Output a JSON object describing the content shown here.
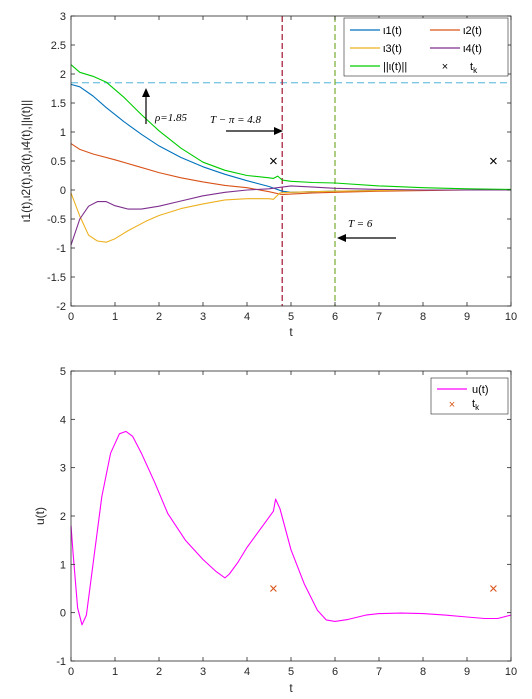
{
  "chart_data": [
    {
      "type": "line",
      "title": "",
      "xlabel": "t",
      "ylabel": "ι1(t),ι2(t),ι3(t),ι4(t),||ι(t)||",
      "xlim": [
        0,
        10
      ],
      "ylim": [
        -2,
        3
      ],
      "xticks": [
        "0",
        "1",
        "2",
        "3",
        "4",
        "5",
        "6",
        "7",
        "8",
        "9",
        "10"
      ],
      "yticks": [
        "-2",
        "-1.5",
        "-1",
        "-0.5",
        "0",
        "0.5",
        "1",
        "1.5",
        "2",
        "2.5",
        "3"
      ],
      "grid": false,
      "legend_position": "top-right",
      "series": [
        {
          "name": "ι1(t)",
          "color": "#0072BD",
          "points": [
            [
              0,
              1.82
            ],
            [
              0.2,
              1.78
            ],
            [
              0.5,
              1.62
            ],
            [
              0.8,
              1.42
            ],
            [
              1.2,
              1.18
            ],
            [
              1.6,
              0.96
            ],
            [
              2,
              0.76
            ],
            [
              2.5,
              0.56
            ],
            [
              3,
              0.4
            ],
            [
              3.5,
              0.27
            ],
            [
              4,
              0.16
            ],
            [
              4.5,
              0.06
            ],
            [
              4.8,
              -0.02
            ],
            [
              5,
              -0.04
            ],
            [
              5.5,
              -0.03
            ],
            [
              6,
              -0.02
            ],
            [
              7,
              -0.01
            ],
            [
              8,
              0
            ],
            [
              9,
              0
            ],
            [
              10,
              0
            ]
          ]
        },
        {
          "name": "ι2(t)",
          "color": "#D95319",
          "points": [
            [
              0,
              0.8
            ],
            [
              0.2,
              0.7
            ],
            [
              0.5,
              0.62
            ],
            [
              1,
              0.52
            ],
            [
              1.5,
              0.41
            ],
            [
              2,
              0.3
            ],
            [
              2.5,
              0.21
            ],
            [
              3,
              0.14
            ],
            [
              3.5,
              0.08
            ],
            [
              4,
              0.04
            ],
            [
              4.5,
              -0.03
            ],
            [
              4.8,
              -0.08
            ],
            [
              5,
              -0.07
            ],
            [
              5.5,
              -0.05
            ],
            [
              6,
              -0.04
            ],
            [
              7,
              -0.02
            ],
            [
              8,
              -0.01
            ],
            [
              9,
              0
            ],
            [
              10,
              0
            ]
          ]
        },
        {
          "name": "ι3(t)",
          "color": "#EDB120",
          "points": [
            [
              0,
              -0.05
            ],
            [
              0.2,
              -0.45
            ],
            [
              0.4,
              -0.78
            ],
            [
              0.6,
              -0.88
            ],
            [
              0.8,
              -0.9
            ],
            [
              1,
              -0.84
            ],
            [
              1.3,
              -0.7
            ],
            [
              1.7,
              -0.54
            ],
            [
              2,
              -0.44
            ],
            [
              2.5,
              -0.32
            ],
            [
              3,
              -0.24
            ],
            [
              3.5,
              -0.17
            ],
            [
              4,
              -0.15
            ],
            [
              4.5,
              -0.15
            ],
            [
              4.6,
              -0.16
            ],
            [
              4.75,
              -0.05
            ],
            [
              5,
              -0.04
            ],
            [
              5.5,
              -0.03
            ],
            [
              6,
              -0.02
            ],
            [
              7,
              -0.01
            ],
            [
              8,
              0
            ],
            [
              9,
              0
            ],
            [
              10,
              0
            ]
          ]
        },
        {
          "name": "ι4(t)",
          "color": "#7E2F8E",
          "points": [
            [
              0,
              -0.95
            ],
            [
              0.2,
              -0.5
            ],
            [
              0.4,
              -0.28
            ],
            [
              0.6,
              -0.2
            ],
            [
              0.8,
              -0.2
            ],
            [
              1,
              -0.27
            ],
            [
              1.3,
              -0.33
            ],
            [
              1.6,
              -0.33
            ],
            [
              2,
              -0.28
            ],
            [
              2.5,
              -0.19
            ],
            [
              3,
              -0.1
            ],
            [
              3.5,
              -0.04
            ],
            [
              4,
              0
            ],
            [
              4.5,
              0.02
            ],
            [
              4.8,
              0.05
            ],
            [
              5,
              0.07
            ],
            [
              5.5,
              0.05
            ],
            [
              6,
              0.03
            ],
            [
              7,
              0.01
            ],
            [
              8,
              0
            ],
            [
              9,
              0
            ],
            [
              10,
              0
            ]
          ]
        },
        {
          "name": "||ι(t)||",
          "color": "#00CC00",
          "points": [
            [
              0,
              2.16
            ],
            [
              0.2,
              2.03
            ],
            [
              0.5,
              1.96
            ],
            [
              0.8,
              1.86
            ],
            [
              1.2,
              1.6
            ],
            [
              1.6,
              1.3
            ],
            [
              2,
              1.02
            ],
            [
              2.5,
              0.72
            ],
            [
              3,
              0.48
            ],
            [
              3.5,
              0.34
            ],
            [
              4,
              0.25
            ],
            [
              4.5,
              0.21
            ],
            [
              4.6,
              0.2
            ],
            [
              4.7,
              0.24
            ],
            [
              4.8,
              0.17
            ],
            [
              5,
              0.15
            ],
            [
              5.5,
              0.13
            ],
            [
              6,
              0.12
            ],
            [
              7,
              0.07
            ],
            [
              8,
              0.04
            ],
            [
              9,
              0.02
            ],
            [
              10,
              0.01
            ]
          ]
        }
      ],
      "markers": {
        "name": "t_k",
        "label_main": "t",
        "label_sub": "k",
        "color": "#000000",
        "points": [
          [
            4.6,
            0.5
          ],
          [
            9.6,
            0.5
          ]
        ]
      },
      "reference_lines": [
        {
          "orientation": "horizontal",
          "value": 1.85,
          "color": "#7EC8E3"
        },
        {
          "orientation": "vertical",
          "value": 4.8,
          "color": "#A2142F"
        },
        {
          "orientation": "vertical",
          "value": 6,
          "color": "#77AC30"
        }
      ],
      "annotations": [
        {
          "text": "ρ=1.85"
        },
        {
          "text": "T − π = 4.8"
        },
        {
          "text": "T = 6"
        }
      ]
    },
    {
      "type": "line",
      "title": "",
      "xlabel": "t",
      "ylabel": "u(t)",
      "xlim": [
        0,
        10
      ],
      "ylim": [
        -1,
        5
      ],
      "xticks": [
        "0",
        "1",
        "2",
        "3",
        "4",
        "5",
        "6",
        "7",
        "8",
        "9",
        "10"
      ],
      "yticks": [
        "-1",
        "0",
        "1",
        "2",
        "3",
        "4",
        "5"
      ],
      "grid": false,
      "legend_position": "top-right",
      "series": [
        {
          "name": "u(t)",
          "color": "#FF00FF",
          "points": [
            [
              0,
              1.8
            ],
            [
              0.05,
              1.2
            ],
            [
              0.15,
              0.1
            ],
            [
              0.25,
              -0.25
            ],
            [
              0.35,
              -0.05
            ],
            [
              0.5,
              1.0
            ],
            [
              0.7,
              2.4
            ],
            [
              0.9,
              3.3
            ],
            [
              1.1,
              3.7
            ],
            [
              1.25,
              3.75
            ],
            [
              1.4,
              3.65
            ],
            [
              1.6,
              3.3
            ],
            [
              1.9,
              2.7
            ],
            [
              2.2,
              2.05
            ],
            [
              2.6,
              1.5
            ],
            [
              3,
              1.1
            ],
            [
              3.3,
              0.85
            ],
            [
              3.5,
              0.72
            ],
            [
              3.6,
              0.8
            ],
            [
              3.8,
              1.05
            ],
            [
              4,
              1.35
            ],
            [
              4.2,
              1.6
            ],
            [
              4.4,
              1.85
            ],
            [
              4.6,
              2.1
            ],
            [
              4.65,
              2.35
            ],
            [
              4.75,
              2.15
            ],
            [
              5,
              1.3
            ],
            [
              5.3,
              0.6
            ],
            [
              5.6,
              0.05
            ],
            [
              5.8,
              -0.15
            ],
            [
              6,
              -0.18
            ],
            [
              6.3,
              -0.14
            ],
            [
              6.7,
              -0.05
            ],
            [
              7,
              -0.02
            ],
            [
              7.5,
              -0.01
            ],
            [
              8,
              -0.02
            ],
            [
              8.5,
              -0.05
            ],
            [
              9,
              -0.09
            ],
            [
              9.4,
              -0.12
            ],
            [
              9.7,
              -0.12
            ],
            [
              10,
              -0.05
            ]
          ]
        }
      ],
      "markers": {
        "name": "t_k",
        "label_main": "t",
        "label_sub": "k",
        "color": "#D95319",
        "points": [
          [
            4.6,
            0.5
          ],
          [
            9.6,
            0.5
          ]
        ]
      }
    }
  ]
}
